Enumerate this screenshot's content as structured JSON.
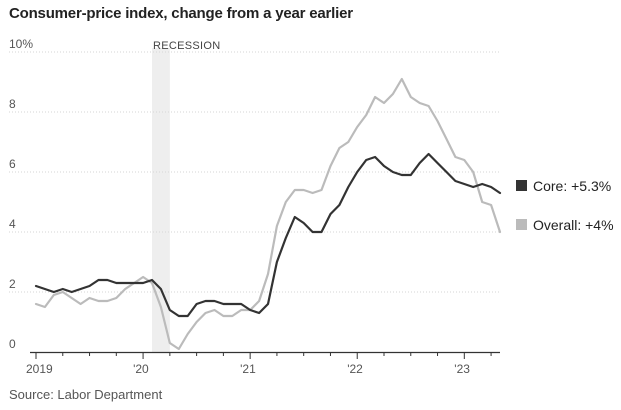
{
  "chart_data": {
    "type": "line",
    "title": "Consumer-price index, change from a year earlier",
    "source": "Source: Labor Department",
    "ylim": [
      0,
      10
    ],
    "y_ticks": [
      {
        "value": 0,
        "label": "0"
      },
      {
        "value": 2,
        "label": "2"
      },
      {
        "value": 4,
        "label": "4"
      },
      {
        "value": 6,
        "label": "6"
      },
      {
        "value": 8,
        "label": "8"
      },
      {
        "value": 10,
        "label": "10%"
      }
    ],
    "x_range": [
      "2019-01",
      "2023-05"
    ],
    "x_ticks": [
      {
        "value": "2019-01",
        "label": "2019"
      },
      {
        "value": "2020-01",
        "label": "'20"
      },
      {
        "value": "2021-01",
        "label": "'21"
      },
      {
        "value": "2022-01",
        "label": "'22"
      },
      {
        "value": "2023-01",
        "label": "'23"
      }
    ],
    "grid": true,
    "legend_position": "right",
    "recession": {
      "label": "RECESSION",
      "start": "2020-02",
      "end": "2020-04",
      "color": "#eeeeee"
    },
    "series": [
      {
        "name": "Core",
        "legend_label": "Core: +5.3%",
        "color": "#333333",
        "x": [
          "2019-01",
          "2019-02",
          "2019-03",
          "2019-04",
          "2019-05",
          "2019-06",
          "2019-07",
          "2019-08",
          "2019-09",
          "2019-10",
          "2019-11",
          "2019-12",
          "2020-01",
          "2020-02",
          "2020-03",
          "2020-04",
          "2020-05",
          "2020-06",
          "2020-07",
          "2020-08",
          "2020-09",
          "2020-10",
          "2020-11",
          "2020-12",
          "2021-01",
          "2021-02",
          "2021-03",
          "2021-04",
          "2021-05",
          "2021-06",
          "2021-07",
          "2021-08",
          "2021-09",
          "2021-10",
          "2021-11",
          "2021-12",
          "2022-01",
          "2022-02",
          "2022-03",
          "2022-04",
          "2022-05",
          "2022-06",
          "2022-07",
          "2022-08",
          "2022-09",
          "2022-10",
          "2022-11",
          "2022-12",
          "2023-01",
          "2023-02",
          "2023-03",
          "2023-04",
          "2023-05"
        ],
        "values": [
          2.2,
          2.1,
          2.0,
          2.1,
          2.0,
          2.1,
          2.2,
          2.4,
          2.4,
          2.3,
          2.3,
          2.3,
          2.3,
          2.4,
          2.1,
          1.4,
          1.2,
          1.2,
          1.6,
          1.7,
          1.7,
          1.6,
          1.6,
          1.6,
          1.4,
          1.3,
          1.6,
          3.0,
          3.8,
          4.5,
          4.3,
          4.0,
          4.0,
          4.6,
          4.9,
          5.5,
          6.0,
          6.4,
          6.5,
          6.2,
          6.0,
          5.9,
          5.9,
          6.3,
          6.6,
          6.3,
          6.0,
          5.7,
          5.6,
          5.5,
          5.6,
          5.5,
          5.3
        ]
      },
      {
        "name": "Overall",
        "legend_label": "Overall: +4%",
        "color": "#bbbbbb",
        "x": [
          "2019-01",
          "2019-02",
          "2019-03",
          "2019-04",
          "2019-05",
          "2019-06",
          "2019-07",
          "2019-08",
          "2019-09",
          "2019-10",
          "2019-11",
          "2019-12",
          "2020-01",
          "2020-02",
          "2020-03",
          "2020-04",
          "2020-05",
          "2020-06",
          "2020-07",
          "2020-08",
          "2020-09",
          "2020-10",
          "2020-11",
          "2020-12",
          "2021-01",
          "2021-02",
          "2021-03",
          "2021-04",
          "2021-05",
          "2021-06",
          "2021-07",
          "2021-08",
          "2021-09",
          "2021-10",
          "2021-11",
          "2021-12",
          "2022-01",
          "2022-02",
          "2022-03",
          "2022-04",
          "2022-05",
          "2022-06",
          "2022-07",
          "2022-08",
          "2022-09",
          "2022-10",
          "2022-11",
          "2022-12",
          "2023-01",
          "2023-02",
          "2023-03",
          "2023-04",
          "2023-05"
        ],
        "values": [
          1.6,
          1.5,
          1.9,
          2.0,
          1.8,
          1.6,
          1.8,
          1.7,
          1.7,
          1.8,
          2.1,
          2.3,
          2.5,
          2.3,
          1.5,
          0.3,
          0.1,
          0.6,
          1.0,
          1.3,
          1.4,
          1.2,
          1.2,
          1.4,
          1.4,
          1.7,
          2.6,
          4.2,
          5.0,
          5.4,
          5.4,
          5.3,
          5.4,
          6.2,
          6.8,
          7.0,
          7.5,
          7.9,
          8.5,
          8.3,
          8.6,
          9.1,
          8.5,
          8.3,
          8.2,
          7.7,
          7.1,
          6.5,
          6.4,
          6.0,
          5.0,
          4.9,
          4.0
        ]
      }
    ]
  }
}
